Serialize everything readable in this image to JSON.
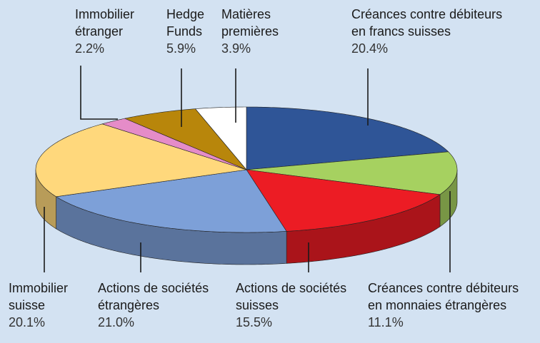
{
  "chart_data": {
    "type": "pie3d",
    "categories": [
      "Créances contre débiteurs en francs suisses",
      "Créances contre débiteurs en monnaies étrangères",
      "Actions de sociétés suisses",
      "Actions de sociétés étrangères",
      "Immobilier suisse",
      "Immobilier étranger",
      "Hedge Funds",
      "Matières premières"
    ],
    "values": [
      20.4,
      11.1,
      15.5,
      21.0,
      20.1,
      2.2,
      5.9,
      3.9
    ],
    "value_labels": [
      "20.4%",
      "11.1%",
      "15.5%",
      "21.0%",
      "20.1%",
      "2.2%",
      "5.9%",
      "3.9%"
    ],
    "colors": [
      "#2f5597",
      "#a6d160",
      "#ec1c24",
      "#7da0d8",
      "#ffd87c",
      "#e58cc8",
      "#b8860b",
      "#ffffff"
    ]
  }
}
